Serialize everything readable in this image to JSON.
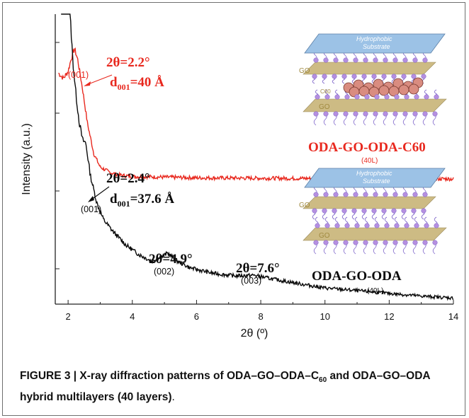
{
  "chart_data": {
    "type": "line",
    "xlabel": "2θ (º)",
    "ylabel": "Intensity (a.u.)",
    "xlim": [
      1.6,
      14
    ],
    "x_ticks": [
      "2",
      "4",
      "6",
      "8",
      "10",
      "12",
      "14"
    ],
    "y_tick_labels": "none",
    "grid": false,
    "series": [
      {
        "name": "ODA-GO-ODA-C60",
        "sublabel": "(40L)",
        "color": "#e8281e",
        "x": [
          1.7,
          1.85,
          2.0,
          2.1,
          2.2,
          2.3,
          2.45,
          2.6,
          2.8,
          3.0,
          3.3,
          3.6,
          4.0,
          5,
          6,
          8,
          10,
          12,
          14
        ],
        "y": [
          172,
          168,
          173,
          183,
          190,
          182,
          160,
          135,
          112,
          102,
          98,
          96,
          95,
          94.5,
          94,
          93.7,
          93.5,
          93.3,
          93.2
        ]
      },
      {
        "name": "ODA-GO-ODA",
        "sublabel": "(40L)",
        "color": "#0a0a0a",
        "x": [
          1.78,
          1.85,
          1.95,
          2.05,
          2.15,
          2.25,
          2.35,
          2.45,
          2.55,
          2.7,
          2.9,
          3.1,
          3.4,
          3.8,
          4.2,
          4.6,
          4.9,
          5.1,
          5.4,
          5.8,
          6.5,
          7.2,
          7.8,
          8.3,
          9,
          10,
          11,
          12,
          13,
          14
        ],
        "y": [
          1000,
          600,
          300,
          220,
          180,
          155,
          135,
          122,
          120,
          95,
          75,
          63,
          54,
          44,
          37,
          32,
          35,
          38,
          32,
          27,
          23,
          21,
          21.5,
          19,
          16,
          12,
          10,
          8,
          6,
          4.5
        ]
      }
    ],
    "annotations": {
      "red_peak": {
        "angle": "2θ=2.2°",
        "d_prefix": "d",
        "d_sub": "001",
        "d_value": "=40 Å",
        "miller": "(001)"
      },
      "black_peak1": {
        "angle": "2θ=2.4°",
        "d_prefix": "d",
        "d_sub": "001",
        "d_value": "=37.6 Å",
        "miller": "(001)"
      },
      "black_peak2": {
        "angle": "2θ=4.9°",
        "miller": "(002)"
      },
      "black_peak3": {
        "angle": "2θ=7.6°",
        "miller": "(003)"
      }
    },
    "inset_labels": {
      "substrate": [
        "Hydrophobic",
        "Substrate"
      ],
      "go": "GO",
      "c60": "C60"
    }
  },
  "caption": {
    "prefix": "FIGURE 3 | X-ray diffraction patterns of ODA–GO–ODA–C",
    "sub": "60",
    "suffix": " and ODA–GO–ODA hybrid multilayers (40 layers)",
    "end": "."
  },
  "colors": {
    "red": "#e8281e",
    "black": "#0a0a0a",
    "axis": "#222222",
    "substrate": "#9cc2e6",
    "go_layer": "#cdbb84",
    "oda_bead": "#b58fe0",
    "c60_ball": "#d98c80"
  }
}
